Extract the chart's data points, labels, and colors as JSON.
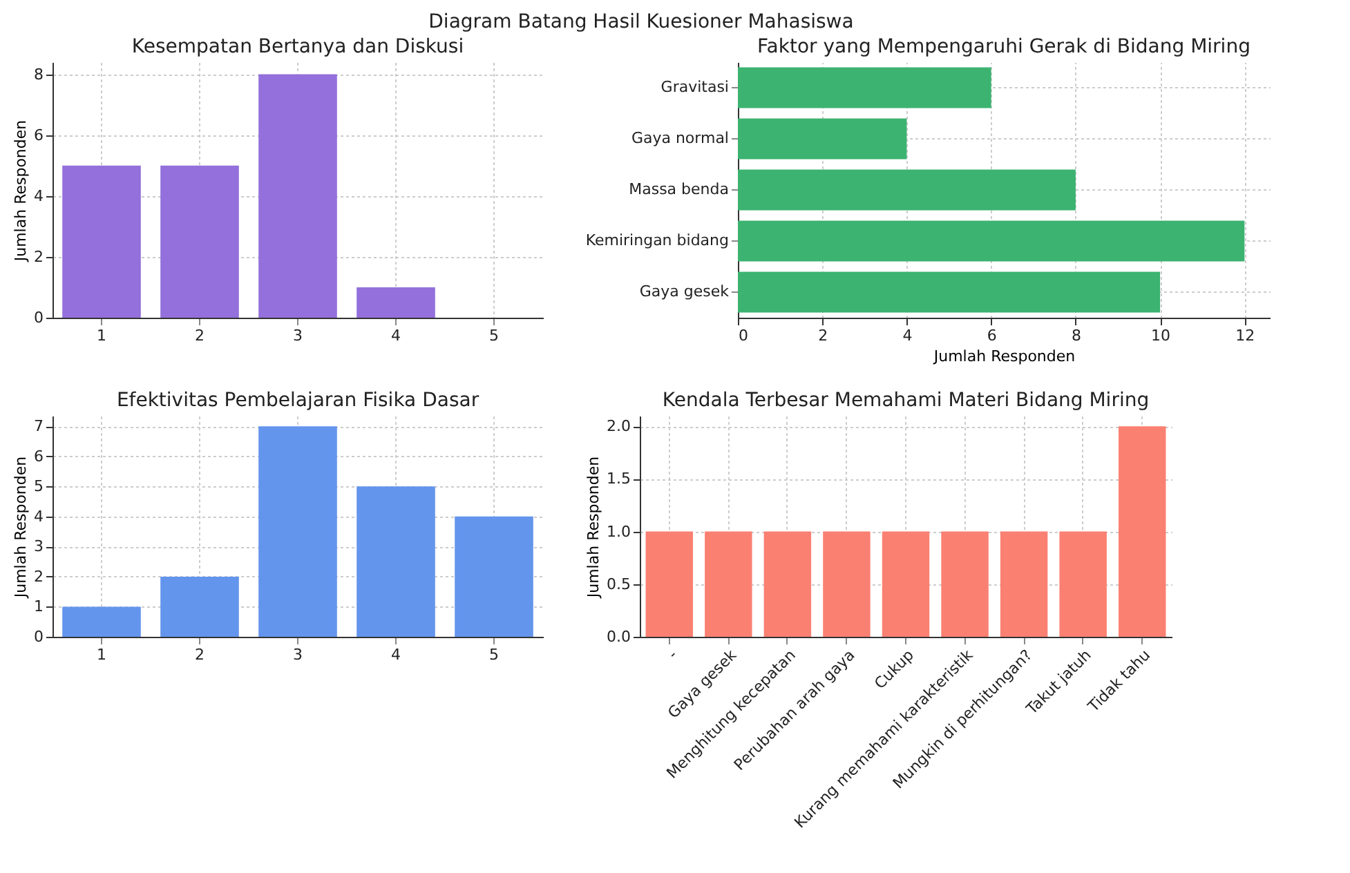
{
  "chart_data": [
    {
      "type": "bar",
      "title": "Kesempatan Bertanya dan Diskusi",
      "annotations": [
        "Diagram Batang Hasil Kuesioner Mahasiswa"
      ],
      "ylabel": "Jumlah Responden",
      "categories": [
        "1",
        "2",
        "3",
        "4",
        "5"
      ],
      "values": [
        5,
        5,
        8,
        1,
        0
      ],
      "color": "#9370db",
      "ylim": [
        0,
        8.4
      ],
      "yticks": [
        0,
        2,
        4,
        6,
        8
      ],
      "grid": true
    },
    {
      "type": "bar",
      "orientation": "horizontal",
      "title": "Faktor yang Mempengaruhi Gerak di Bidang Miring",
      "xlabel": "Jumlah Responden",
      "categories": [
        "Gravitasi",
        "Gaya normal",
        "Massa benda",
        "Kemiringan bidang",
        "Gaya gesek"
      ],
      "values": [
        6,
        4,
        8,
        12,
        10
      ],
      "color": "#3cb371",
      "xlim": [
        0,
        12.6
      ],
      "xticks": [
        0,
        2,
        4,
        6,
        8,
        10,
        12
      ],
      "grid": true
    },
    {
      "type": "bar",
      "title": "Efektivitas Pembelajaran Fisika Dasar",
      "ylabel": "Jumlah Responden",
      "categories": [
        "1",
        "2",
        "3",
        "4",
        "5"
      ],
      "values": [
        1,
        2,
        7,
        5,
        4
      ],
      "color": "#6495ed",
      "ylim": [
        0,
        7.35
      ],
      "yticks": [
        0,
        1,
        2,
        3,
        4,
        5,
        6,
        7
      ],
      "grid": true
    },
    {
      "type": "bar",
      "title": "Kendala Terbesar Memahami Materi Bidang Miring",
      "ylabel": "Jumlah Responden",
      "categories": [
        "-",
        "Gaya gesek",
        "Menghitung kecepatan",
        "Perubahan arah gaya",
        "Cukup",
        "Kurang memahami karakteristik",
        "Mungkin di perhitungan?",
        "Takut jatuh",
        "Tidak tahu"
      ],
      "values": [
        1,
        1,
        1,
        1,
        1,
        1,
        1,
        1,
        2
      ],
      "color": "#fa8072",
      "ylim": [
        0,
        2.1
      ],
      "yticks": [
        {
          "value": 0,
          "label": "0.0"
        },
        {
          "value": 0.5,
          "label": "0.5"
        },
        {
          "value": 1,
          "label": "1.0"
        },
        {
          "value": 1.5,
          "label": "1.5"
        },
        {
          "value": 2,
          "label": "2.0"
        }
      ],
      "grid": true
    }
  ]
}
